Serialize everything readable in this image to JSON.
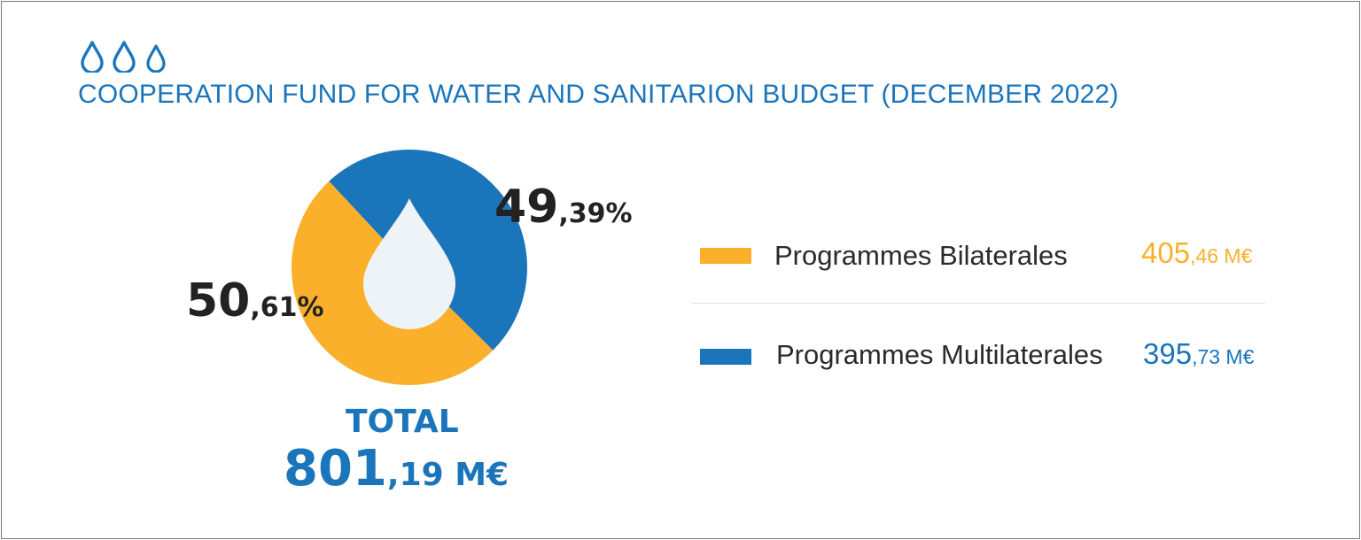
{
  "header": {
    "title": "COOPERATION FUND FOR WATER AND SANITARION BUDGET (DECEMBER 2022)",
    "icon": "water-drops-icon"
  },
  "colors": {
    "blue": "#1b75bb",
    "orange": "#fbb02b",
    "drop": "#eef3f8",
    "text": "#222222"
  },
  "chart_data": {
    "type": "pie",
    "title": "COOPERATION FUND FOR WATER AND SANITARION BUDGET (DECEMBER 2022)",
    "unit": "M€",
    "series": [
      {
        "name": "Programmes Bilaterales",
        "value": 405.46,
        "value_int": "405",
        "value_dec": ",46 M€",
        "percent": 50.61,
        "pct_int": "50",
        "pct_dec": ",61%",
        "color": "#fbb02b"
      },
      {
        "name": "Programmes Multilaterales",
        "value": 395.73,
        "value_int": "395",
        "value_dec": ",73 M€",
        "percent": 49.39,
        "pct_int": "49",
        "pct_dec": ",39%",
        "color": "#1b75bb"
      }
    ],
    "total": {
      "label": "TOTAL",
      "value": 801.19,
      "value_int": "801",
      "value_dec": ",19 M€"
    },
    "legend_position": "right"
  }
}
